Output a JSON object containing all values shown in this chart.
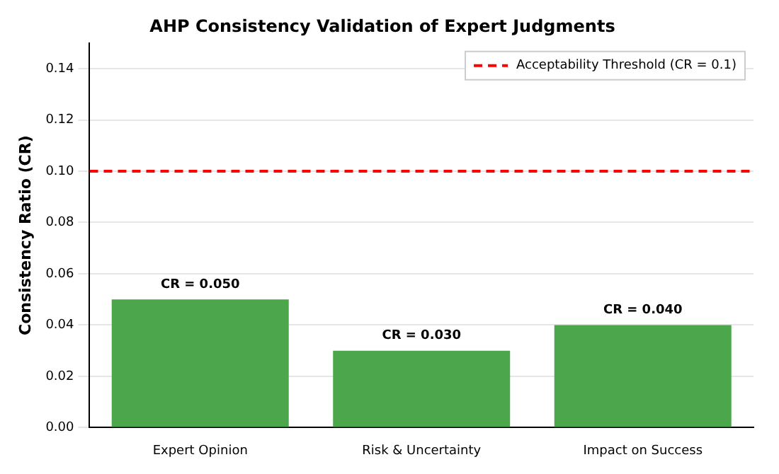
{
  "chart_data": {
    "type": "bar",
    "title": "AHP Consistency Validation of Expert Judgments",
    "ylabel": "Consistency Ratio (CR)",
    "categories": [
      "Expert Opinion",
      "Risk & Uncertainty",
      "Impact on Success"
    ],
    "values": [
      0.05,
      0.03,
      0.04
    ],
    "color": "#4ca64c",
    "value_labels": [
      "CR = 0.050",
      "CR = 0.030",
      "CR = 0.040"
    ],
    "ylim": [
      0,
      0.15
    ],
    "yticks": [
      {
        "value": 0,
        "label": "0.00"
      },
      {
        "value": 0.02,
        "label": "0.02"
      },
      {
        "value": 0.04,
        "label": "0.04"
      },
      {
        "value": 0.06,
        "label": "0.06"
      },
      {
        "value": 0.08,
        "label": "0.08"
      },
      {
        "value": 0.1,
        "label": "0.10"
      },
      {
        "value": 0.12,
        "label": "0.12"
      },
      {
        "value": 0.14,
        "label": "0.14"
      }
    ],
    "ref_lines": [
      {
        "axis": "y",
        "value": 0.1,
        "label": "Acceptability Threshold (CR = 0.1)",
        "color": "#ff0000",
        "line_style": "dashed"
      }
    ],
    "grid": "y",
    "legend": "top right"
  }
}
